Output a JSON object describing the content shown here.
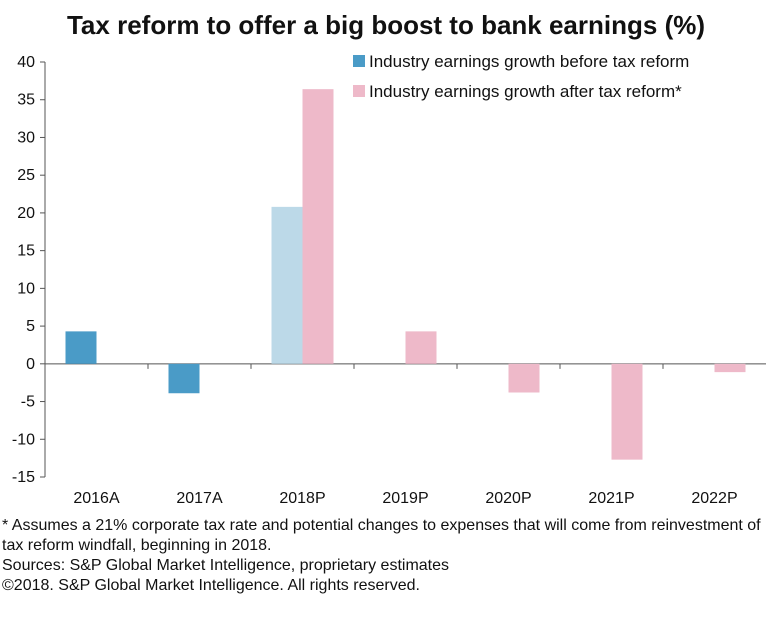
{
  "chart_data": {
    "type": "bar",
    "title": "Tax reform to offer a big boost to bank earnings (%)",
    "categories": [
      "2016A",
      "2017A",
      "2018P",
      "2019P",
      "2020P",
      "2021P",
      "2022P"
    ],
    "series": [
      {
        "name": "Industry earnings growth before tax reform",
        "values": [
          4.3,
          -3.9,
          20.8,
          null,
          null,
          null,
          null
        ],
        "color": "#4a9bc7",
        "projected_color": "#bcd9e8"
      },
      {
        "name": "Industry earnings growth after tax reform*",
        "values": [
          null,
          null,
          36.4,
          4.3,
          -3.8,
          -12.7,
          -1.1
        ],
        "color": "#eeb9c9"
      }
    ],
    "ylim": [
      -15,
      40
    ],
    "yticks": [
      40,
      35,
      30,
      25,
      20,
      15,
      10,
      5,
      0,
      -5,
      -10,
      -15
    ],
    "grid": false,
    "legend_position": "top-right"
  },
  "notes": {
    "assumption": "* Assumes a 21% corporate tax rate and potential changes to expenses that will come from reinvestment of tax reform windfall, beginning in 2018.",
    "sources": "Sources: S&P Global Market Intelligence, proprietary estimates",
    "copyright": "©2018. S&P Global Market Intelligence. All rights reserved."
  }
}
